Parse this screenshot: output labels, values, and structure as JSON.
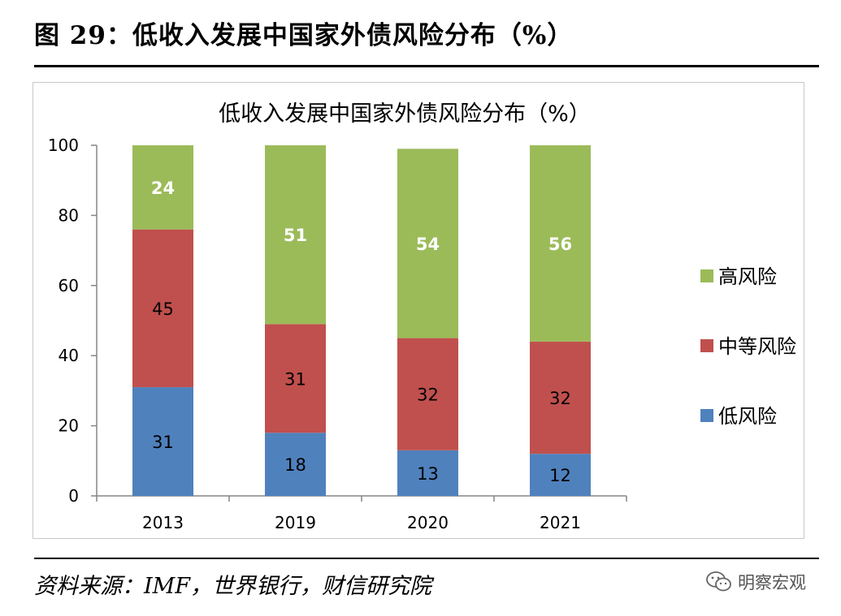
{
  "header": {
    "title": "图 29：低收入发展中国家外债风险分布（%）"
  },
  "footer": {
    "source": "资料来源：IMF，世界银行，财信研究院",
    "brand": "明察宏观"
  },
  "colors": {
    "low": "#4f81bd",
    "mid": "#c0504d",
    "high": "#9bbb59"
  },
  "chart_data": {
    "type": "bar",
    "stacked": true,
    "title": "低收入发展中国家外债风险分布（%）",
    "categories": [
      "2013",
      "2019",
      "2020",
      "2021"
    ],
    "series": [
      {
        "name": "低风险",
        "values": [
          31,
          18,
          13,
          12
        ],
        "color": "#4f81bd"
      },
      {
        "name": "中等风险",
        "values": [
          45,
          31,
          32,
          32
        ],
        "color": "#c0504d"
      },
      {
        "name": "高风险",
        "values": [
          24,
          51,
          54,
          56
        ],
        "color": "#9bbb59"
      }
    ],
    "ylim": [
      0,
      100
    ],
    "yticks": [
      0,
      20,
      40,
      60,
      80,
      100
    ],
    "legend": {
      "position": "right",
      "order": [
        "高风险",
        "中等风险",
        "低风险"
      ]
    },
    "grid": false
  }
}
